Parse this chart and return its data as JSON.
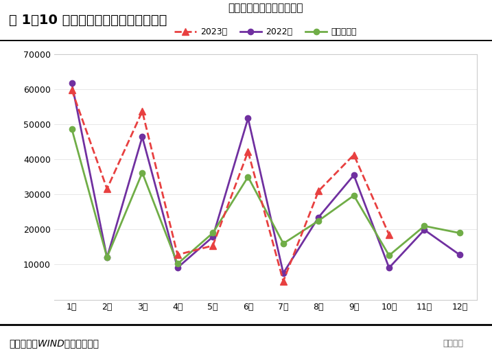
{
  "title_main": "图 1：10 月社融增量同比继续多增较多",
  "chart_title": "新增社会融资规模（亿元）",
  "footer": "资料来源：WIND，财信研究院",
  "footer_right": "明察宏观",
  "months": [
    "1月",
    "2月",
    "3月",
    "4月",
    "5月",
    "6月",
    "7月",
    "8月",
    "9月",
    "10月",
    "11月",
    "12月"
  ],
  "series_2023": [
    59800,
    31600,
    53700,
    12800,
    15400,
    42200,
    5282,
    31000,
    41300,
    18500,
    null,
    null
  ],
  "series_2022": [
    61700,
    12000,
    46400,
    9102,
    17900,
    51700,
    7561,
    23500,
    35500,
    9079,
    19900,
    12800
  ],
  "series_avg": [
    48700,
    12100,
    36200,
    10200,
    19000,
    35000,
    16000,
    22500,
    29700,
    12600,
    21000,
    19000
  ],
  "color_2023": "#e84040",
  "color_2022": "#7030a0",
  "color_avg": "#70ad47",
  "ylim": [
    0,
    70000
  ],
  "yticks": [
    0,
    10000,
    20000,
    30000,
    40000,
    50000,
    60000,
    70000
  ],
  "legend_2023": "2023年",
  "legend_2022": "2022年",
  "legend_avg": "近五年均值",
  "bg_color": "#ffffff",
  "plot_bg_color": "#ffffff",
  "border_color": "#cccccc"
}
